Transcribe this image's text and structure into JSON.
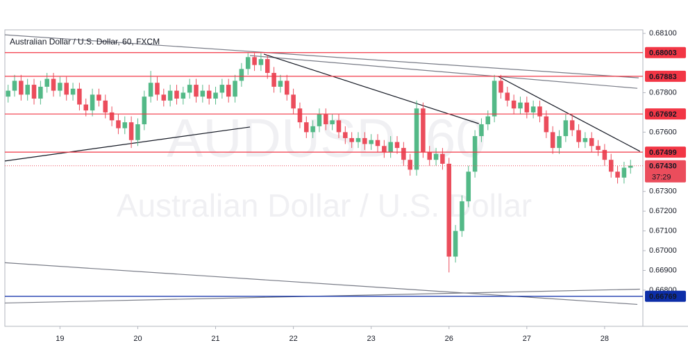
{
  "chart_data": {
    "type": "candlestick",
    "title": "Australian Dollar / U.S. Dollar, 60, FXCM",
    "watermark": "AUDUSD, 60",
    "watermark_subtitle": "Australian Dollar / U.S. Dollar",
    "up_color": "#53b987",
    "down_color": "#eb4d5c",
    "xlim": [
      0,
      196.8
    ],
    "xticks": [
      {
        "value": 17,
        "label": "19"
      },
      {
        "value": 41,
        "label": "20"
      },
      {
        "value": 65,
        "label": "21"
      },
      {
        "value": 89,
        "label": "22"
      },
      {
        "value": 113,
        "label": "23"
      },
      {
        "value": 137,
        "label": "26"
      },
      {
        "value": 161,
        "label": "27"
      },
      {
        "value": 185,
        "label": "28"
      }
    ],
    "ylim": [
      0.66617,
      0.68118
    ],
    "yticks": [
      {
        "value": 0.681,
        "label": "0.68100"
      },
      {
        "value": 0.678,
        "label": "0.67800"
      },
      {
        "value": 0.676,
        "label": "0.67600"
      },
      {
        "value": 0.673,
        "label": "0.67300"
      },
      {
        "value": 0.672,
        "label": "0.67200"
      },
      {
        "value": 0.671,
        "label": "0.67100"
      },
      {
        "value": 0.67,
        "label": "0.67000"
      },
      {
        "value": 0.669,
        "label": "0.66900"
      },
      {
        "value": 0.668,
        "label": "0.66800"
      }
    ],
    "x": [
      1,
      3,
      5,
      7,
      9,
      11,
      13,
      15,
      17,
      19,
      21,
      23,
      25,
      27,
      29,
      31,
      33,
      35,
      37,
      39,
      41,
      43,
      45,
      47,
      49,
      51,
      53,
      55,
      57,
      59,
      61,
      63,
      65,
      67,
      69,
      71,
      73,
      75,
      77,
      79,
      81,
      83,
      85,
      87,
      89,
      91,
      93,
      95,
      97,
      99,
      101,
      103,
      105,
      107,
      109,
      111,
      113,
      115,
      117,
      119,
      121,
      123,
      125,
      127,
      129,
      131,
      133,
      135,
      137,
      139,
      141,
      143,
      145,
      147,
      149,
      151,
      153,
      155,
      157,
      159,
      161,
      163,
      165,
      167,
      169,
      171,
      173,
      175,
      177,
      179,
      181,
      183,
      185,
      187,
      189,
      191,
      193
    ],
    "open": [
      0.6778,
      0.6781,
      0.6786,
      0.6779,
      0.6784,
      0.6777,
      0.6783,
      0.6787,
      0.6781,
      0.6785,
      0.6779,
      0.6782,
      0.6774,
      0.6771,
      0.6779,
      0.6776,
      0.677,
      0.6766,
      0.6762,
      0.6765,
      0.6756,
      0.6764,
      0.6778,
      0.6785,
      0.6779,
      0.6776,
      0.6781,
      0.6777,
      0.678,
      0.6784,
      0.6778,
      0.6781,
      0.6777,
      0.678,
      0.6784,
      0.6778,
      0.6786,
      0.6792,
      0.6798,
      0.6794,
      0.6797,
      0.679,
      0.6783,
      0.6786,
      0.6779,
      0.6772,
      0.6765,
      0.676,
      0.6763,
      0.6769,
      0.6764,
      0.6766,
      0.676,
      0.6757,
      0.6755,
      0.6757,
      0.6754,
      0.6756,
      0.6753,
      0.675,
      0.6755,
      0.6752,
      0.6746,
      0.6741,
      0.6772,
      0.675,
      0.6746,
      0.6749,
      0.6744,
      0.6697,
      0.671,
      0.6725,
      0.674,
      0.6758,
      0.6764,
      0.6768,
      0.6786,
      0.678,
      0.6776,
      0.6772,
      0.6775,
      0.677,
      0.6773,
      0.6768,
      0.676,
      0.6752,
      0.6758,
      0.6766,
      0.6761,
      0.6755,
      0.6757,
      0.6753,
      0.6751,
      0.6746,
      0.674,
      0.6737,
      0.6742
    ],
    "high": [
      0.6784,
      0.6789,
      0.6789,
      0.6787,
      0.6787,
      0.6786,
      0.679,
      0.679,
      0.6788,
      0.6788,
      0.6785,
      0.6785,
      0.6777,
      0.6782,
      0.6782,
      0.6779,
      0.6773,
      0.6769,
      0.6768,
      0.6768,
      0.6767,
      0.6781,
      0.6791,
      0.6788,
      0.6782,
      0.6784,
      0.6784,
      0.6783,
      0.6787,
      0.6787,
      0.6784,
      0.6784,
      0.6783,
      0.6787,
      0.6787,
      0.6789,
      0.6795,
      0.68,
      0.68,
      0.68,
      0.6799,
      0.6793,
      0.6789,
      0.6789,
      0.6782,
      0.6775,
      0.6768,
      0.6766,
      0.6772,
      0.6772,
      0.6769,
      0.6769,
      0.6763,
      0.676,
      0.676,
      0.676,
      0.6759,
      0.6759,
      0.6756,
      0.6758,
      0.6758,
      0.6755,
      0.6749,
      0.6776,
      0.6775,
      0.6753,
      0.6752,
      0.6752,
      0.6747,
      0.6713,
      0.6728,
      0.6743,
      0.6761,
      0.6767,
      0.6771,
      0.6789,
      0.6789,
      0.6783,
      0.6779,
      0.6778,
      0.6778,
      0.6776,
      0.6776,
      0.6771,
      0.6763,
      0.6761,
      0.6769,
      0.6769,
      0.6764,
      0.676,
      0.676,
      0.6756,
      0.6754,
      0.6749,
      0.6743,
      0.6745,
      0.6746
    ],
    "low": [
      0.6775,
      0.6778,
      0.6776,
      0.6776,
      0.6774,
      0.6774,
      0.678,
      0.6778,
      0.6778,
      0.6776,
      0.6776,
      0.6771,
      0.6768,
      0.6768,
      0.6773,
      0.6767,
      0.6763,
      0.6759,
      0.6759,
      0.6752,
      0.6753,
      0.6761,
      0.6775,
      0.6776,
      0.6773,
      0.6773,
      0.6774,
      0.6774,
      0.6777,
      0.6775,
      0.6775,
      0.6774,
      0.6774,
      0.6777,
      0.6775,
      0.6775,
      0.6783,
      0.6789,
      0.6791,
      0.6791,
      0.6787,
      0.678,
      0.678,
      0.6776,
      0.6769,
      0.6762,
      0.6757,
      0.6757,
      0.676,
      0.6761,
      0.6761,
      0.6757,
      0.6754,
      0.6752,
      0.6752,
      0.6751,
      0.6751,
      0.675,
      0.6747,
      0.6747,
      0.6749,
      0.6743,
      0.6738,
      0.6738,
      0.6747,
      0.6743,
      0.6743,
      0.6741,
      0.6689,
      0.6694,
      0.6707,
      0.6722,
      0.6737,
      0.6755,
      0.6761,
      0.6765,
      0.6777,
      0.6773,
      0.6769,
      0.6769,
      0.6767,
      0.6767,
      0.6765,
      0.6757,
      0.6749,
      0.6749,
      0.6755,
      0.6758,
      0.6752,
      0.6752,
      0.675,
      0.6748,
      0.6743,
      0.6737,
      0.6734,
      0.6734,
      0.6739
    ],
    "close": [
      0.6781,
      0.6786,
      0.6779,
      0.6784,
      0.6777,
      0.6783,
      0.6787,
      0.6781,
      0.6785,
      0.6779,
      0.6782,
      0.6774,
      0.6771,
      0.6779,
      0.6776,
      0.677,
      0.6766,
      0.6762,
      0.6765,
      0.6756,
      0.6764,
      0.6778,
      0.6785,
      0.6779,
      0.6776,
      0.6781,
      0.6777,
      0.678,
      0.6784,
      0.6778,
      0.6781,
      0.6777,
      0.678,
      0.6784,
      0.6778,
      0.6786,
      0.6792,
      0.6798,
      0.6794,
      0.6797,
      0.679,
      0.6783,
      0.6786,
      0.6779,
      0.6772,
      0.6765,
      0.676,
      0.6763,
      0.6769,
      0.6764,
      0.6766,
      0.676,
      0.6757,
      0.6755,
      0.6757,
      0.6754,
      0.6756,
      0.6753,
      0.675,
      0.6755,
      0.6752,
      0.6746,
      0.6741,
      0.6772,
      0.675,
      0.6746,
      0.6749,
      0.6744,
      0.6697,
      0.671,
      0.6725,
      0.674,
      0.6758,
      0.6764,
      0.6768,
      0.6786,
      0.678,
      0.6776,
      0.6772,
      0.6775,
      0.677,
      0.6773,
      0.6768,
      0.676,
      0.6752,
      0.6758,
      0.6766,
      0.6761,
      0.6755,
      0.6757,
      0.6753,
      0.6751,
      0.6746,
      0.674,
      0.6737,
      0.6742,
      0.6743
    ],
    "levels": [
      {
        "value": 0.68003,
        "color": "#f23645"
      },
      {
        "value": 0.67883,
        "color": "#f23645"
      },
      {
        "value": 0.67692,
        "color": "#f23645"
      },
      {
        "value": 0.67499,
        "color": "#f23645"
      },
      {
        "value": 0.66769,
        "color": "#0d2ea8"
      }
    ],
    "last_price": {
      "value": 0.6743,
      "label": "0.67430",
      "color": "#eb4d5c"
    },
    "countdown": "37:29",
    "trendlines": [
      {
        "x": [
          0,
          195.5
        ],
        "y": [
          0.68093,
          0.67875
        ],
        "color": "#787b86"
      },
      {
        "x": [
          75.6,
          195.1
        ],
        "y": [
          0.67988,
          0.67822
        ],
        "color": "#787b86"
      },
      {
        "x": [
          79.9,
          146.2
        ],
        "y": [
          0.67995,
          0.67643
        ],
        "color": "#131722"
      },
      {
        "x": [
          152.2,
          195.9
        ],
        "y": [
          0.67882,
          0.67503
        ],
        "color": "#131722"
      },
      {
        "x": [
          0,
          75.6
        ],
        "y": [
          0.67454,
          0.67626
        ],
        "color": "#131722"
      },
      {
        "x": [
          0,
          195.1
        ],
        "y": [
          0.66939,
          0.66728
        ],
        "color": "#787b86"
      },
      {
        "x": [
          0,
          195.9
        ],
        "y": [
          0.66735,
          0.66805
        ],
        "color": "#787b86"
      }
    ]
  }
}
